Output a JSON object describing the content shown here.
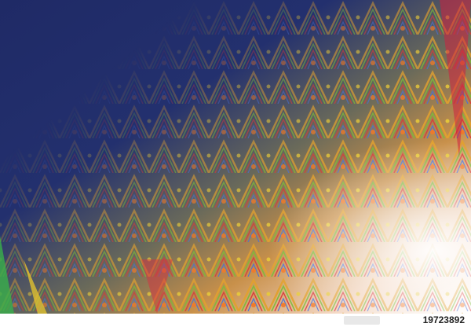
{
  "image": {
    "id_number": "19723892"
  }
}
